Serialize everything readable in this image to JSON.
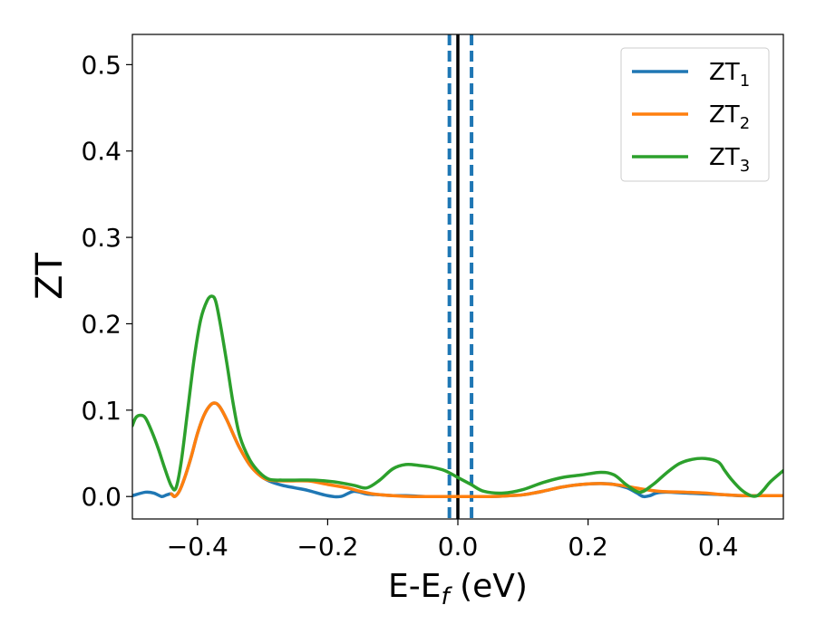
{
  "chart_data": {
    "type": "line",
    "xlabel": "E-E",
    "xlabel_sub": "f",
    "xlabel_unit": " (eV)",
    "ylabel": "ZT",
    "xlim": [
      -0.5,
      0.5
    ],
    "ylim": [
      -0.026,
      0.535
    ],
    "xticks": [
      -0.4,
      -0.2,
      0.0,
      0.2,
      0.4
    ],
    "xtick_labels": [
      "−0.4",
      "−0.2",
      "0.0",
      "0.2",
      "0.4"
    ],
    "yticks": [
      0.0,
      0.1,
      0.2,
      0.3,
      0.4,
      0.5
    ],
    "ytick_labels": [
      "0.0",
      "0.1",
      "0.2",
      "0.3",
      "0.4",
      "0.5"
    ],
    "legend_position": "top-right",
    "grid": false,
    "vlines": [
      {
        "x": -0.013,
        "color": "#1f77b4",
        "style": "dashed"
      },
      {
        "x": 0.0,
        "color": "#000000",
        "style": "solid"
      },
      {
        "x": 0.021,
        "color": "#1f77b4",
        "style": "dashed"
      }
    ],
    "series": [
      {
        "name": "ZT",
        "sub": "1",
        "color": "#1f77b4",
        "x": [
          -0.5,
          -0.48,
          -0.467,
          -0.455,
          -0.447,
          -0.44,
          -0.435,
          -0.428,
          -0.42,
          -0.41,
          -0.4,
          -0.39,
          -0.38,
          -0.372,
          -0.365,
          -0.355,
          -0.345,
          -0.335,
          -0.32,
          -0.305,
          -0.29,
          -0.27,
          -0.25,
          -0.23,
          -0.2,
          -0.18,
          -0.16,
          -0.14,
          -0.12,
          -0.1,
          -0.08,
          -0.05,
          -0.02,
          0.0,
          0.02,
          0.05,
          0.08,
          0.1,
          0.13,
          0.16,
          0.19,
          0.22,
          0.24,
          0.26,
          0.275,
          0.285,
          0.295,
          0.305,
          0.32,
          0.35,
          0.38,
          0.41,
          0.43,
          0.45,
          0.47,
          0.5
        ],
        "y": [
          0.001,
          0.005,
          0.004,
          0.0,
          0.002,
          0.003,
          0.0,
          0.006,
          0.021,
          0.045,
          0.073,
          0.094,
          0.106,
          0.108,
          0.103,
          0.089,
          0.072,
          0.056,
          0.037,
          0.025,
          0.018,
          0.013,
          0.01,
          0.007,
          0.001,
          0.0,
          0.006,
          0.003,
          0.002,
          0.001,
          0.001,
          0.0,
          0.0,
          0.0,
          0.0,
          0.0,
          0.001,
          0.002,
          0.006,
          0.011,
          0.014,
          0.015,
          0.014,
          0.01,
          0.004,
          0.0,
          0.001,
          0.004,
          0.005,
          0.004,
          0.003,
          0.002,
          0.001,
          0.001,
          0.001,
          0.001
        ]
      },
      {
        "name": "ZT",
        "sub": "2",
        "color": "#ff7f0e",
        "x": [
          -0.44,
          -0.435,
          -0.428,
          -0.42,
          -0.41,
          -0.4,
          -0.39,
          -0.38,
          -0.372,
          -0.365,
          -0.355,
          -0.345,
          -0.335,
          -0.32,
          -0.305,
          -0.29,
          -0.26,
          -0.23,
          -0.2,
          -0.17,
          -0.15,
          -0.13,
          -0.1,
          -0.07,
          -0.04,
          -0.01,
          0.02,
          0.05,
          0.08,
          0.1,
          0.13,
          0.16,
          0.19,
          0.22,
          0.25,
          0.28,
          0.31,
          0.35,
          0.38,
          0.41,
          0.44,
          0.47,
          0.5
        ],
        "y": [
          0.003,
          0.0,
          0.006,
          0.021,
          0.045,
          0.073,
          0.094,
          0.106,
          0.108,
          0.103,
          0.089,
          0.072,
          0.056,
          0.037,
          0.025,
          0.019,
          0.018,
          0.018,
          0.014,
          0.01,
          0.006,
          0.003,
          0.001,
          0.0,
          0.0,
          0.0,
          0.0,
          0.0,
          0.001,
          0.002,
          0.006,
          0.011,
          0.014,
          0.015,
          0.013,
          0.009,
          0.006,
          0.005,
          0.004,
          0.002,
          0.001,
          0.001,
          0.001
        ]
      },
      {
        "name": "ZT",
        "sub": "3",
        "color": "#2ca02c",
        "x": [
          -0.5,
          -0.495,
          -0.488,
          -0.48,
          -0.47,
          -0.46,
          -0.45,
          -0.44,
          -0.433,
          -0.425,
          -0.415,
          -0.405,
          -0.395,
          -0.385,
          -0.378,
          -0.372,
          -0.365,
          -0.355,
          -0.345,
          -0.335,
          -0.32,
          -0.305,
          -0.29,
          -0.27,
          -0.25,
          -0.22,
          -0.19,
          -0.16,
          -0.14,
          -0.12,
          -0.1,
          -0.08,
          -0.06,
          -0.04,
          -0.02,
          0.0,
          0.02,
          0.04,
          0.07,
          0.1,
          0.13,
          0.16,
          0.19,
          0.22,
          0.24,
          0.26,
          0.28,
          0.3,
          0.32,
          0.34,
          0.36,
          0.38,
          0.4,
          0.41,
          0.42,
          0.435,
          0.45,
          0.46,
          0.47,
          0.48,
          0.5
        ],
        "y": [
          0.082,
          0.091,
          0.094,
          0.091,
          0.075,
          0.055,
          0.032,
          0.012,
          0.01,
          0.04,
          0.1,
          0.16,
          0.205,
          0.227,
          0.232,
          0.226,
          0.2,
          0.155,
          0.107,
          0.07,
          0.043,
          0.028,
          0.02,
          0.019,
          0.019,
          0.019,
          0.017,
          0.013,
          0.01,
          0.019,
          0.032,
          0.037,
          0.036,
          0.034,
          0.03,
          0.022,
          0.014,
          0.006,
          0.004,
          0.008,
          0.016,
          0.022,
          0.025,
          0.028,
          0.025,
          0.013,
          0.005,
          0.014,
          0.027,
          0.038,
          0.043,
          0.044,
          0.04,
          0.03,
          0.02,
          0.008,
          0.001,
          0.001,
          0.008,
          0.017,
          0.03
        ]
      }
    ]
  }
}
